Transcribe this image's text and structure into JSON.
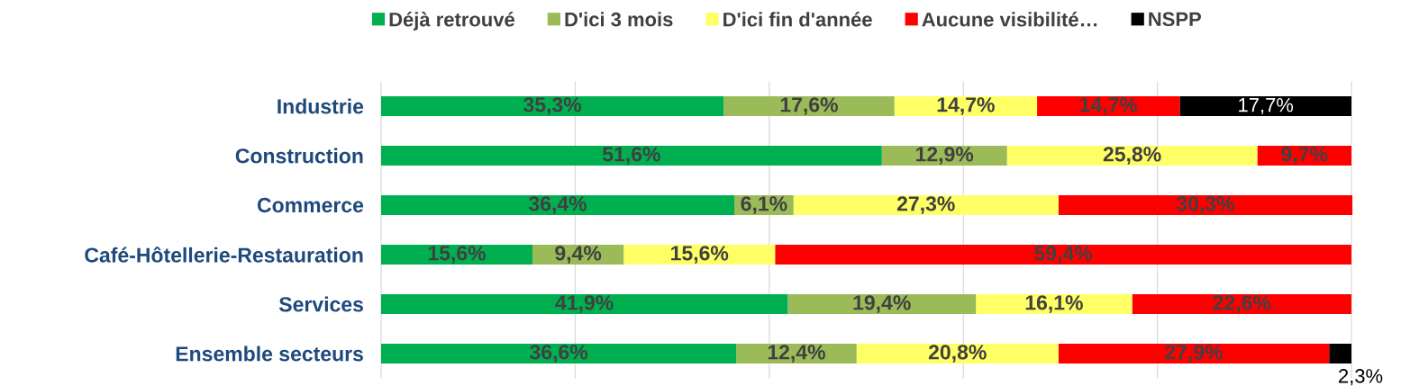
{
  "chart_data": {
    "type": "bar",
    "orientation": "horizontal",
    "stacked": true,
    "categories": [
      "Industrie",
      "Construction",
      "Commerce",
      "Café-Hôtellerie-Restauration",
      "Services",
      "Ensemble secteurs"
    ],
    "xlim": [
      0,
      100
    ],
    "xticks": [
      {
        "value": 0,
        "label": null
      },
      {
        "value": 20,
        "label": null
      },
      {
        "value": 40,
        "label": null
      },
      {
        "value": 60,
        "label": null
      },
      {
        "value": 80,
        "label": null
      },
      {
        "value": 100,
        "label": null
      }
    ],
    "grid": "x",
    "legend": "top",
    "tick_labels": "y",
    "series": [
      {
        "name": "Déjà retrouvé",
        "color": "#00b050",
        "values": [
          35.3,
          51.6,
          36.4,
          15.6,
          41.9,
          36.6
        ],
        "value_labels": [
          "35,3%",
          "51,6%",
          "36,4%",
          "15,6%",
          "41,9%",
          "36,6%"
        ]
      },
      {
        "name": "D'ici 3 mois",
        "color": "#9bbb59",
        "values": [
          17.6,
          12.9,
          6.1,
          9.4,
          19.4,
          12.4
        ],
        "value_labels": [
          "17,6%",
          "12,9%",
          "6,1%",
          "9,4%",
          "19,4%",
          "12,4%"
        ]
      },
      {
        "name": "D'ici fin d'année",
        "color": "#ffff66",
        "values": [
          14.7,
          25.8,
          27.3,
          15.6,
          16.1,
          20.8
        ],
        "value_labels": [
          "14,7%",
          "25,8%",
          "27,3%",
          "15,6%",
          "16,1%",
          "20,8%"
        ]
      },
      {
        "name": "Aucune visibilité…",
        "color": "#ff0000",
        "values": [
          14.7,
          9.7,
          30.3,
          59.4,
          22.6,
          27.9
        ],
        "value_labels": [
          "14,7%",
          "9,7%",
          "30,3%",
          "59,4%",
          "22,6%",
          "27,9%"
        ]
      },
      {
        "name": "NSPP",
        "color": "#000000",
        "values": [
          17.7,
          null,
          null,
          null,
          null,
          2.3
        ],
        "value_labels": [
          "17,7%",
          null,
          null,
          null,
          null,
          "2,3%"
        ]
      }
    ]
  }
}
